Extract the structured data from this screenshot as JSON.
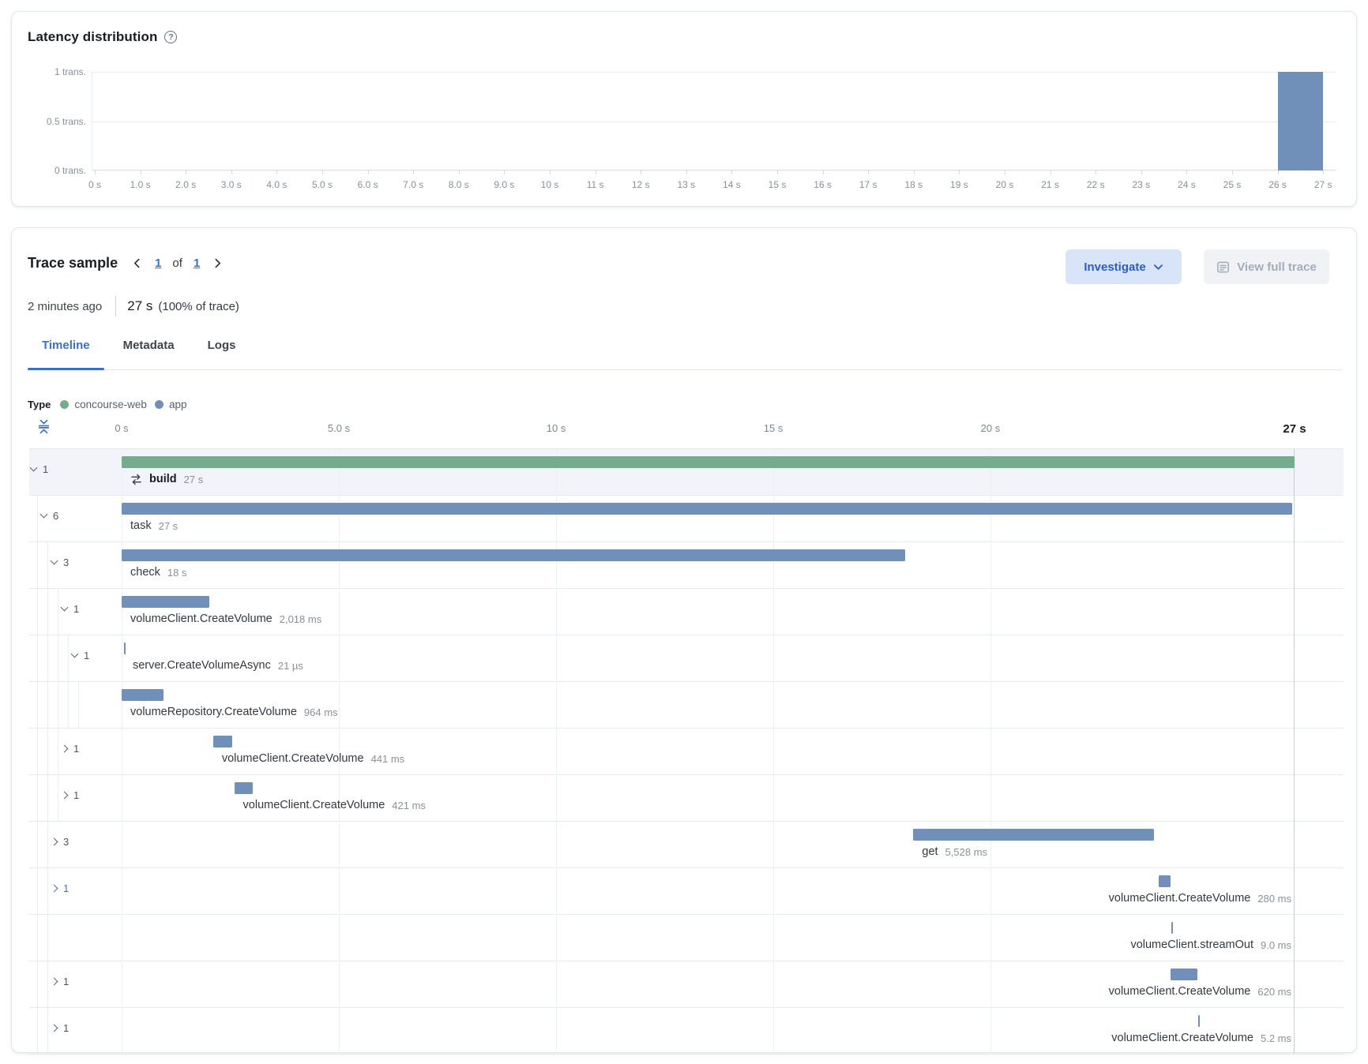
{
  "ui_colors": {
    "accent_blue": "#3b6fc9",
    "bar_blue": "#708FB9",
    "bar_green": "#77AB8D"
  },
  "latency_panel": {
    "title": "Latency distribution",
    "chart_data": {
      "type": "bar",
      "title": "Latency distribution",
      "xlabel": "",
      "ylabel": "",
      "grid": true,
      "x_range_s": [
        0,
        27
      ],
      "y_range_transactions": [
        0,
        1
      ],
      "y_ticks": [
        {
          "label": "1 trans.",
          "value": 1
        },
        {
          "label": "0.5 trans.",
          "value": 0.5
        },
        {
          "label": "0 trans.",
          "value": 0
        }
      ],
      "x_tick_labels": [
        "0 s",
        "1.0 s",
        "2.0 s",
        "3.0 s",
        "4.0 s",
        "5.0 s",
        "6.0 s",
        "7.0 s",
        "8.0 s",
        "9.0 s",
        "10 s",
        "11 s",
        "12 s",
        "13 s",
        "14 s",
        "15 s",
        "16 s",
        "17 s",
        "18 s",
        "19 s",
        "20 s",
        "21 s",
        "22 s",
        "23 s",
        "24 s",
        "25 s",
        "26 s",
        "27 s"
      ],
      "bars": [
        {
          "bucket_start_s": 26,
          "bucket_end_s": 27,
          "transactions": 1
        }
      ],
      "bar_color": "#708FB9"
    }
  },
  "trace_panel": {
    "title": "Trace sample",
    "pagination": {
      "current": "1",
      "of_label": "of",
      "total": "1"
    },
    "buttons": {
      "investigate": "Investigate",
      "view_full_trace": "View full trace"
    },
    "sample_meta": {
      "age": "2 minutes ago",
      "duration": "27 s",
      "percent_of_trace": "(100% of trace)"
    },
    "tabs": [
      {
        "label": "Timeline",
        "active": true
      },
      {
        "label": "Metadata",
        "active": false
      },
      {
        "label": "Logs",
        "active": false
      }
    ],
    "legend": {
      "label": "Type",
      "items": [
        {
          "name": "concourse-web",
          "color": "#77AB8D"
        },
        {
          "name": "app",
          "color": "#708FB9"
        }
      ]
    },
    "ruler": {
      "ticks": [
        {
          "label": "0 s",
          "pct": 0
        },
        {
          "label": "5.0 s",
          "pct": 18.52
        },
        {
          "label": "10 s",
          "pct": 37.04
        },
        {
          "label": "15 s",
          "pct": 55.56
        },
        {
          "label": "20 s",
          "pct": 74.07
        },
        {
          "label": "27 s",
          "pct": 100,
          "emphasis": true
        }
      ],
      "gridline_pcts": [
        0,
        18.52,
        37.04,
        55.56,
        74.07,
        100
      ]
    },
    "waterfall": {
      "spans": [
        {
          "name": "build",
          "duration": "27 s",
          "service": "concourse-web",
          "level": 0,
          "children_count": "1",
          "state": "expanded",
          "left_pct": 0,
          "width_pct": 100,
          "selected": true,
          "transaction_icon": true,
          "bold": true
        },
        {
          "name": "task",
          "duration": "27 s",
          "service": "app",
          "level": 1,
          "children_count": "6",
          "state": "expanded",
          "left_pct": 0,
          "width_pct": 99.8
        },
        {
          "name": "check",
          "duration": "18 s",
          "service": "app",
          "level": 2,
          "children_count": "3",
          "state": "expanded",
          "left_pct": 0,
          "width_pct": 66.8
        },
        {
          "name": "volumeClient.CreateVolume",
          "duration": "2,018 ms",
          "service": "app",
          "level": 3,
          "children_count": "1",
          "state": "expanded",
          "left_pct": 0,
          "width_pct": 7.5
        },
        {
          "name": "server.CreateVolumeAsync",
          "duration": "21 µs",
          "service": "app",
          "level": 4,
          "children_count": "1",
          "state": "expanded",
          "left_pct": 0.2,
          "width_pct": 0.12
        },
        {
          "name": "volumeRepository.CreateVolume",
          "duration": "964 ms",
          "service": "app",
          "level": 5,
          "children_count": null,
          "state": "leaf",
          "left_pct": 0,
          "width_pct": 3.6
        },
        {
          "name": "volumeClient.CreateVolume",
          "duration": "441 ms",
          "service": "app",
          "level": 3,
          "children_count": "1",
          "state": "collapsed",
          "left_pct": 7.8,
          "width_pct": 1.63
        },
        {
          "name": "volumeClient.CreateVolume",
          "duration": "421 ms",
          "service": "app",
          "level": 3,
          "children_count": "1",
          "state": "collapsed",
          "left_pct": 9.6,
          "width_pct": 1.56
        },
        {
          "name": "get",
          "duration": "5,528 ms",
          "service": "app",
          "level": 2,
          "children_count": "3",
          "state": "collapsed",
          "left_pct": 67.5,
          "width_pct": 20.5
        },
        {
          "name": "volumeClient.CreateVolume",
          "duration": "280 ms",
          "service": "app",
          "level": 2,
          "children_count": "1",
          "state": "collapsed",
          "left_pct": 88.4,
          "width_pct": 1.04,
          "highlighted": true
        },
        {
          "name": "volumeClient.streamOut",
          "duration": "9.0 ms",
          "service": "app",
          "level": 2,
          "children_count": null,
          "state": "leaf",
          "left_pct": 89.5,
          "width_pct": 0.12
        },
        {
          "name": "volumeClient.CreateVolume",
          "duration": "620 ms",
          "service": "app",
          "level": 2,
          "children_count": "1",
          "state": "collapsed",
          "left_pct": 89.4,
          "width_pct": 2.3
        },
        {
          "name": "volumeClient.CreateVolume",
          "duration": "5.2 ms",
          "service": "app",
          "level": 2,
          "children_count": "1",
          "state": "collapsed",
          "left_pct": 91.8,
          "width_pct": 0.12
        }
      ]
    }
  }
}
